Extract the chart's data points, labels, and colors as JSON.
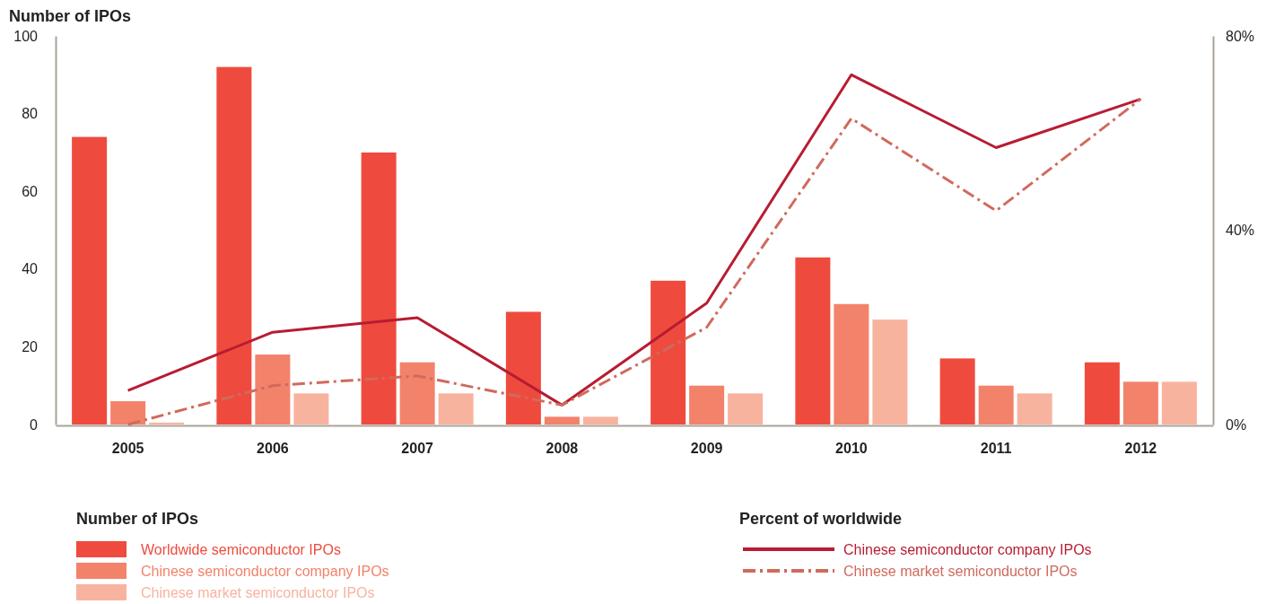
{
  "chart_data": {
    "type": "bar",
    "ylabel": "Number of IPOs",
    "legend_title": "Number of IPOs",
    "annotations": [
      "Percent of worldwide"
    ],
    "categories": [
      "2005",
      "2006",
      "2007",
      "2008",
      "2009",
      "2010",
      "2011",
      "2012"
    ],
    "series": [
      {
        "name": "Worldwide semiconductor IPOs",
        "color": "#ee4b3e",
        "values": [
          74,
          92,
          70,
          29,
          37,
          43,
          17,
          16
        ]
      },
      {
        "name": "Chinese semiconductor company IPOs",
        "color": "#f3826b",
        "values": [
          6,
          18,
          16,
          2,
          10,
          31,
          10,
          11
        ]
      },
      {
        "name": "Chinese market semiconductor IPOs",
        "color": "#f8b39f",
        "values": [
          0.5,
          8,
          8,
          2,
          8,
          27,
          8,
          11
        ]
      },
      {
        "name": "Chinese semiconductor company IPOs",
        "type": "line",
        "axis": "y2",
        "line_style": "solid",
        "color": "#b81c32",
        "values": [
          7,
          19,
          22,
          4,
          25,
          72,
          57,
          67
        ]
      },
      {
        "name": "Chinese market semiconductor IPOs",
        "type": "line",
        "axis": "y2",
        "line_style": "dashed",
        "color": "#d06a5c",
        "values": [
          0,
          8,
          10,
          4,
          20,
          63,
          44,
          67
        ]
      }
    ],
    "ylim": [
      0,
      100
    ],
    "yticks": [
      0,
      20,
      40,
      60,
      80,
      100
    ],
    "y2lim": [
      0,
      80
    ],
    "y2ticks": [
      {
        "value": 0,
        "label": "0%"
      },
      {
        "value": 40,
        "label": "40%"
      },
      {
        "value": 80,
        "label": "80%"
      }
    ],
    "grid": false,
    "legend": "bottom"
  }
}
